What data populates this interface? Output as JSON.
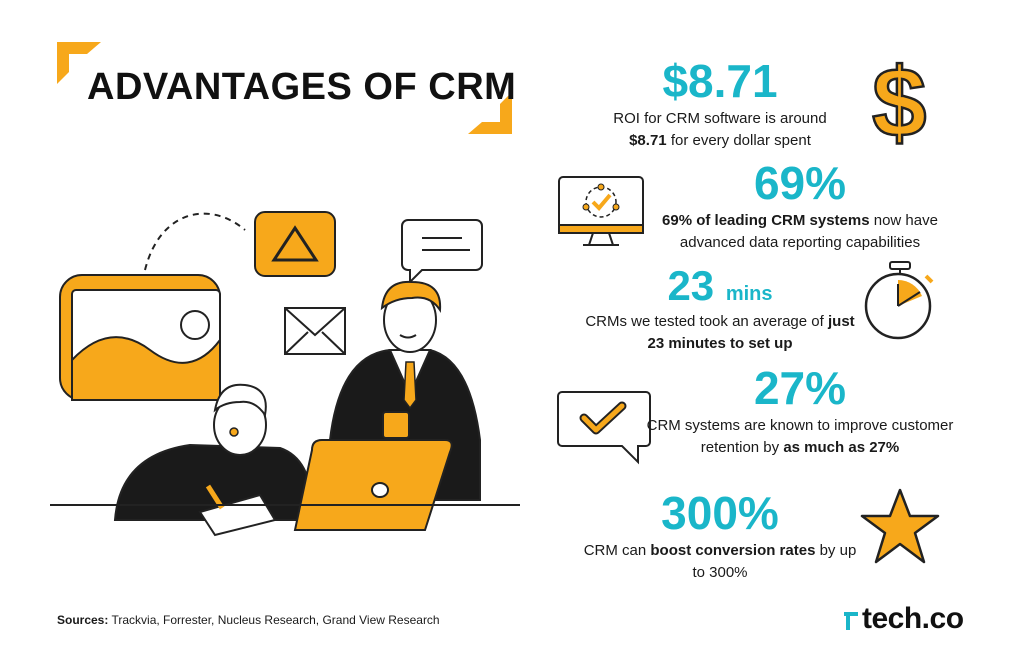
{
  "title": "ADVANTAGES OF CRM",
  "colors": {
    "accent_yellow": "#f7a81b",
    "teal": "#1ab6c9",
    "ink": "#111111"
  },
  "stats": [
    {
      "big": "$8.71",
      "unit": "",
      "desc_pre": "ROI for CRM software is around",
      "desc_bold": "$8.71",
      "desc_post": "for every dollar spent",
      "icon": "dollar-icon"
    },
    {
      "big": "69%",
      "unit": "",
      "desc_bold": "69% of leading CRM systems",
      "desc_post": "now have advanced data reporting capabilities",
      "icon": "monitor-check-icon"
    },
    {
      "big": "23",
      "unit": "mins",
      "desc_pre": "CRMs we tested took an average of",
      "desc_bold": "just 23 minutes to set up",
      "icon": "stopwatch-icon"
    },
    {
      "big": "27%",
      "unit": "",
      "desc_pre": "CRM systems are known to improve customer retention by",
      "desc_bold": "as much as 27%",
      "icon": "chat-check-icon"
    },
    {
      "big": "300%",
      "unit": "",
      "desc_pre": "CRM can",
      "desc_bold": "boost conversion rates",
      "desc_post": "by up to 300%",
      "icon": "star-icon"
    }
  ],
  "sources": {
    "label": "Sources:",
    "text": "Trackvia, Forrester, Nucleus Research, Grand View Research"
  },
  "logo": {
    "text": "tech.co"
  }
}
